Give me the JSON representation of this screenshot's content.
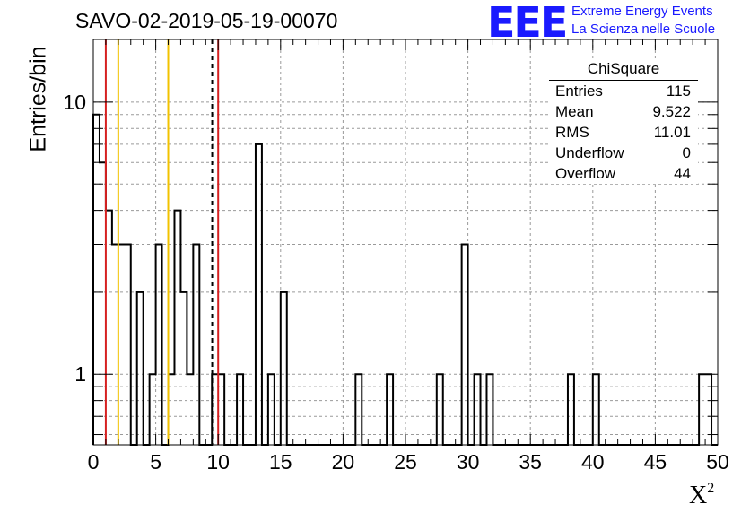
{
  "title": "SAVO-02-2019-05-19-00070",
  "logo": {
    "mark": "EEE",
    "line1": "Extreme Energy Events",
    "line2": "La Scienza nelle Scuole",
    "color": "#1a1aff"
  },
  "stats": {
    "name": "ChiSquare",
    "rows": [
      {
        "label": "Entries",
        "value": "115"
      },
      {
        "label": "Mean",
        "value": "9.522"
      },
      {
        "label": "RMS",
        "value": "11.01"
      },
      {
        "label": "Underflow",
        "value": "0"
      },
      {
        "label": "Overflow",
        "value": "44"
      }
    ]
  },
  "chart_data": {
    "type": "histogram",
    "title": "SAVO-02-2019-05-19-00070",
    "xlabel": "X",
    "xlabel_superscript": "2",
    "ylabel": "Entries/bin",
    "yscale": "log",
    "xlim": [
      0,
      50
    ],
    "ylim": [
      0.55,
      17
    ],
    "xticks": [
      0,
      5,
      10,
      15,
      20,
      25,
      30,
      35,
      40,
      45,
      50
    ],
    "xtick_labels": [
      "0",
      "5",
      "10",
      "15",
      "20",
      "25",
      "30",
      "35",
      "40",
      "45",
      "50"
    ],
    "yticks": [
      1,
      10
    ],
    "ytick_labels": [
      "1",
      "10"
    ],
    "grid": true,
    "bin_width": 0.5,
    "counts": [
      9,
      6,
      4,
      3,
      3,
      3,
      0,
      2,
      0,
      1,
      3,
      0,
      1,
      4,
      2,
      1,
      3,
      0,
      0,
      1,
      1,
      0,
      0,
      1,
      0,
      0,
      7,
      0,
      1,
      0,
      2,
      0,
      0,
      0,
      0,
      0,
      0,
      0,
      0,
      0,
      0,
      0,
      1,
      0,
      0,
      0,
      0,
      1,
      0,
      0,
      0,
      0,
      0,
      0,
      0,
      1,
      0,
      0,
      0,
      3,
      0,
      1,
      0,
      1,
      0,
      0,
      0,
      0,
      0,
      0,
      0,
      0,
      0,
      0,
      0,
      0,
      1,
      0,
      0,
      0,
      1,
      0,
      0,
      0,
      0,
      0,
      0,
      0,
      0,
      0,
      0,
      0,
      0,
      0,
      0,
      0,
      0,
      1,
      1,
      0
    ],
    "vertical_lines": [
      {
        "x": 1,
        "color": "#d62020",
        "style": "solid"
      },
      {
        "x": 2,
        "color": "#f2c200",
        "style": "solid"
      },
      {
        "x": 6,
        "color": "#f2c200",
        "style": "solid"
      },
      {
        "x": 9.522,
        "color": "#000000",
        "style": "dashed"
      },
      {
        "x": 10,
        "color": "#d62020",
        "style": "solid"
      }
    ]
  }
}
